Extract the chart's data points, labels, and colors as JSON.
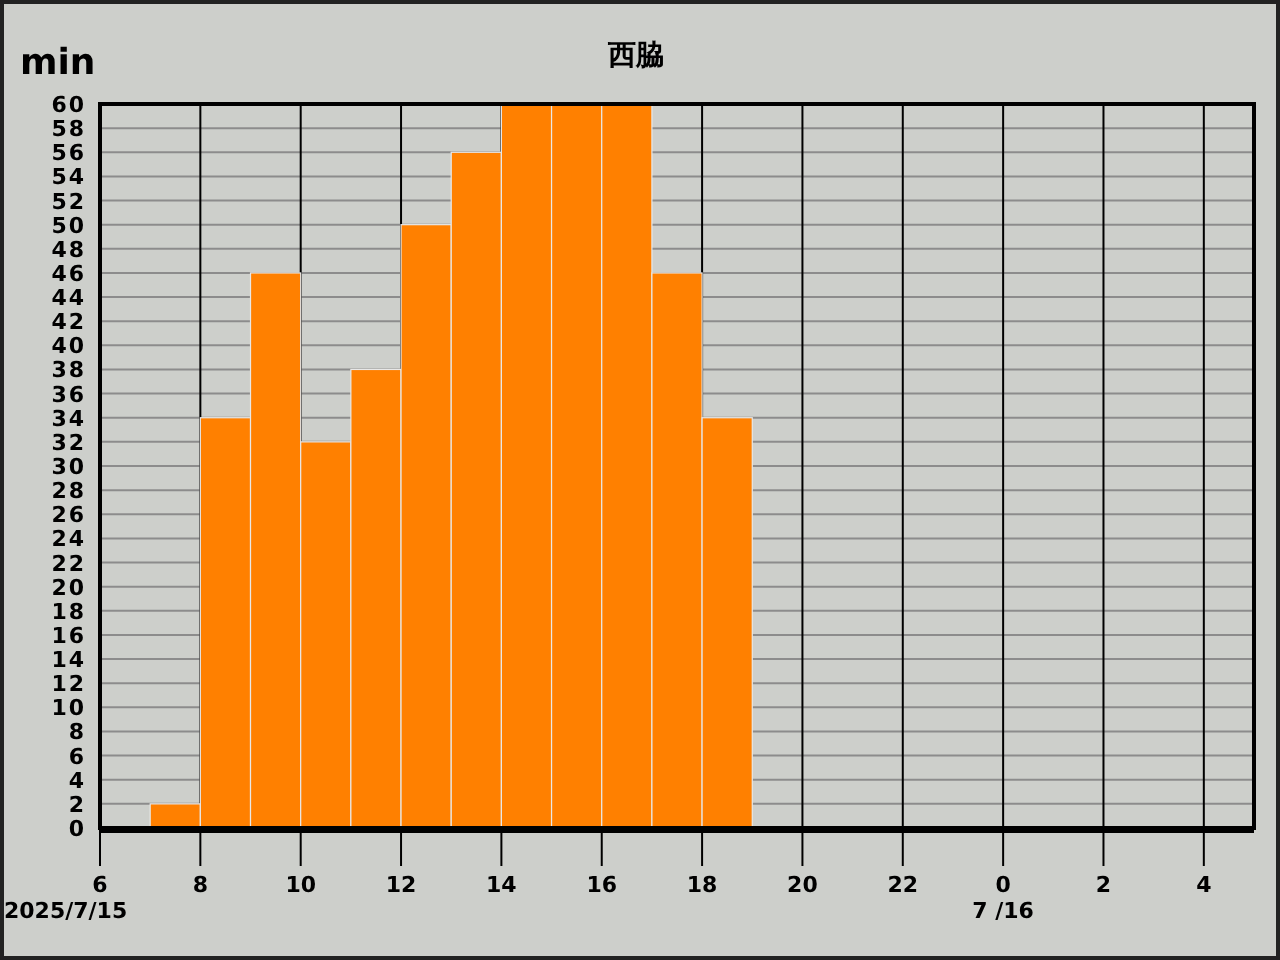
{
  "chart_data": {
    "type": "histogram",
    "title": "西脇",
    "ylabel": "min",
    "bins": [
      "2025-07-15T07:00",
      "2025-07-15T08:00",
      "2025-07-15T09:00",
      "2025-07-15T10:00",
      "2025-07-15T11:00",
      "2025-07-15T12:00",
      "2025-07-15T13:00",
      "2025-07-15T14:00",
      "2025-07-15T15:00",
      "2025-07-15T16:00",
      "2025-07-15T17:00",
      "2025-07-15T18:00",
      "2025-07-15T19:00"
    ],
    "values": [
      2,
      34,
      46,
      32,
      38,
      50,
      56,
      60,
      60,
      60,
      46,
      34
    ],
    "color": "#ff8000",
    "xlim": [
      "2025-07-15T06:00",
      "2025-07-16T05:00"
    ],
    "xticks": [
      {
        "value": "2025-07-15T06:00",
        "label": "6"
      },
      {
        "value": "2025-07-15T08:00",
        "label": "8"
      },
      {
        "value": "2025-07-15T10:00",
        "label": "10"
      },
      {
        "value": "2025-07-15T12:00",
        "label": "12"
      },
      {
        "value": "2025-07-15T14:00",
        "label": "14"
      },
      {
        "value": "2025-07-15T16:00",
        "label": "16"
      },
      {
        "value": "2025-07-15T18:00",
        "label": "18"
      },
      {
        "value": "2025-07-15T20:00",
        "label": "20"
      },
      {
        "value": "2025-07-15T22:00",
        "label": "22"
      },
      {
        "value": "2025-07-16T00:00",
        "label": "0"
      },
      {
        "value": "2025-07-16T02:00",
        "label": "2"
      },
      {
        "value": "2025-07-16T04:00",
        "label": "4"
      }
    ],
    "ylim": [
      0,
      60
    ],
    "yticks": [
      0,
      2,
      4,
      6,
      8,
      10,
      12,
      14,
      16,
      18,
      20,
      22,
      24,
      26,
      28,
      30,
      32,
      34,
      36,
      38,
      40,
      42,
      44,
      46,
      48,
      50,
      52,
      54,
      56,
      58,
      60
    ],
    "grid": true,
    "annotations": [
      "2025/7/15",
      "7 /16"
    ]
  }
}
